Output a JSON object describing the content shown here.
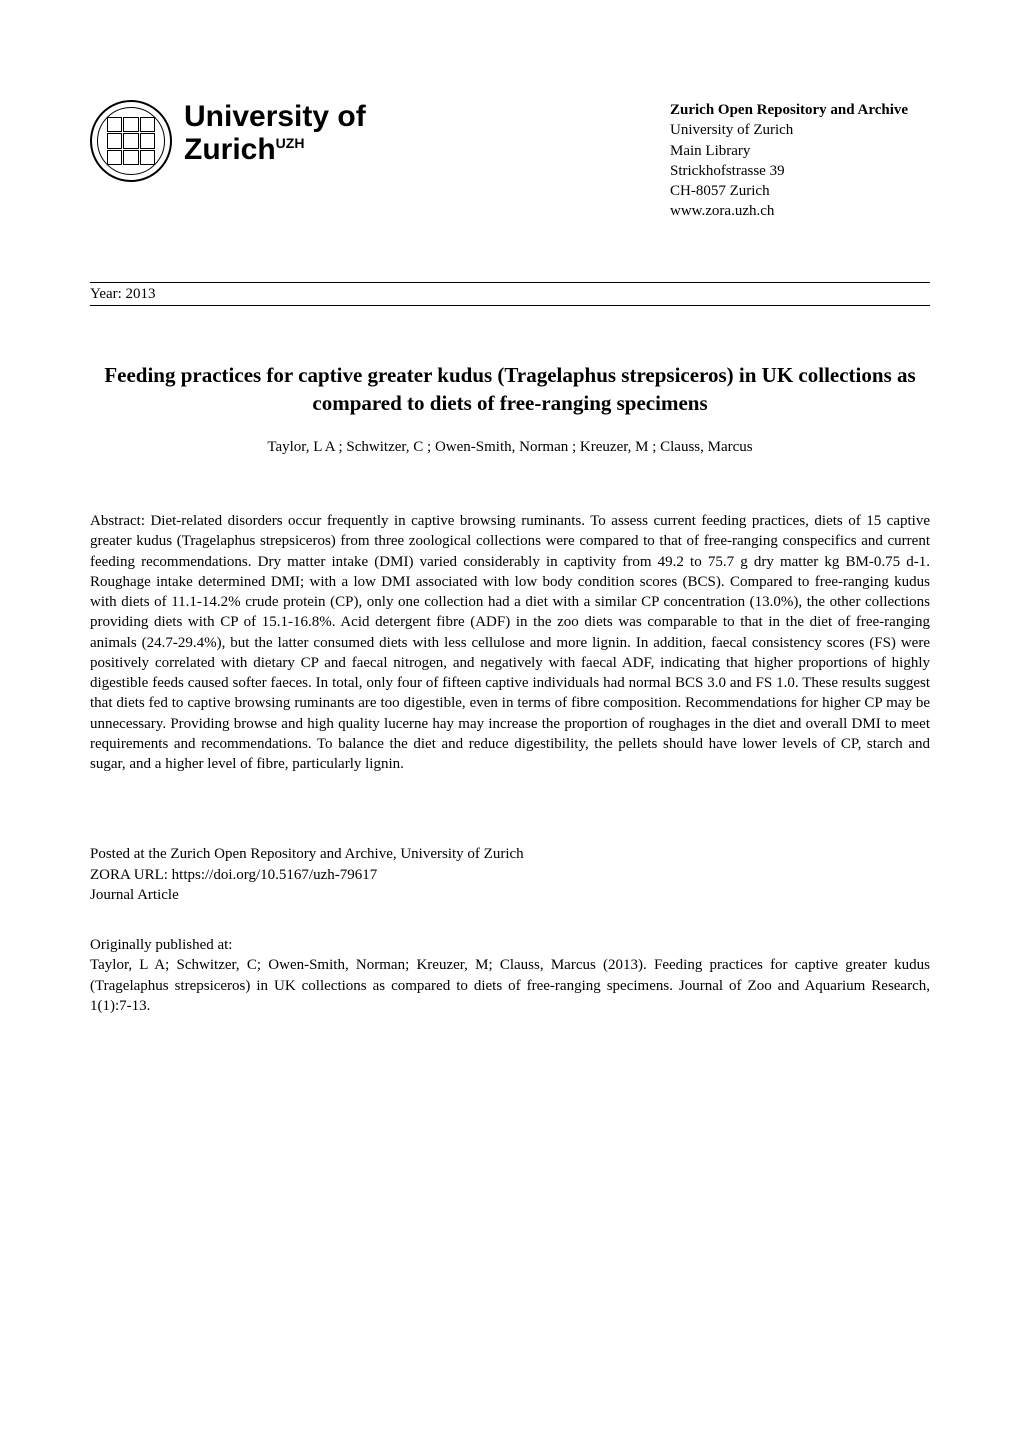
{
  "header": {
    "univ_line1": "University of",
    "univ_line2": "Zurich",
    "uzh_sup": "UZH",
    "repo_title": "Zurich Open Repository and Archive",
    "repo_lines": [
      "University of Zurich",
      "Main Library",
      "Strickhofstrasse 39",
      "CH-8057 Zurich",
      "www.zora.uzh.ch"
    ]
  },
  "year_label": "Year: 2013",
  "title": "Feeding practices for captive greater kudus (Tragelaphus strepsiceros) in UK collections as compared to diets of free-ranging specimens",
  "authors": "Taylor, L A ; Schwitzer, C ; Owen-Smith, Norman ; Kreuzer, M ; Clauss, Marcus",
  "abstract": "Abstract: Diet-related disorders occur frequently in captive browsing ruminants. To assess current feeding practices, diets of 15 captive greater kudus (Tragelaphus strepsiceros) from three zoological collections were compared to that of free-ranging conspecifics and current feeding recommendations. Dry matter intake (DMI) varied considerably in captivity from 49.2 to 75.7 g dry matter kg BM-0.75 d-1. Roughage intake determined DMI; with a low DMI associated with low body condition scores (BCS). Compared to free-ranging kudus with diets of 11.1-14.2% crude protein (CP), only one collection had a diet with a similar CP concentration (13.0%), the other collections providing diets with CP of 15.1-16.8%. Acid detergent fibre (ADF) in the zoo diets was comparable to that in the diet of free-ranging animals (24.7-29.4%), but the latter consumed diets with less cellulose and more lignin. In addition, faecal consistency scores (FS) were positively correlated with dietary CP and faecal nitrogen, and negatively with faecal ADF, indicating that higher proportions of highly digestible feeds caused softer faeces. In total, only four of fifteen captive individuals had normal BCS 3.0 and FS 1.0. These results suggest that diets fed to captive browsing ruminants are too digestible, even in terms of fibre composition. Recommendations for higher CP may be unnecessary. Providing browse and high quality lucerne hay may increase the proportion of roughages in the diet and overall DMI to meet requirements and recommendations. To balance the diet and reduce digestibility, the pellets should have lower levels of CP, starch and sugar, and a higher level of fibre, particularly lignin.",
  "posted": {
    "line1": "Posted at the Zurich Open Repository and Archive, University of Zurich",
    "line2": "ZORA URL: https://doi.org/10.5167/uzh-79617",
    "line3": "Journal Article"
  },
  "orig": {
    "heading": "Originally published at:",
    "citation": "Taylor, L A; Schwitzer, C; Owen-Smith, Norman; Kreuzer, M; Clauss, Marcus (2013). Feeding practices for captive greater kudus (Tragelaphus strepsiceros) in UK collections as compared to diets of free-ranging specimens. Journal of Zoo and Aquarium Research, 1(1):7-13."
  }
}
